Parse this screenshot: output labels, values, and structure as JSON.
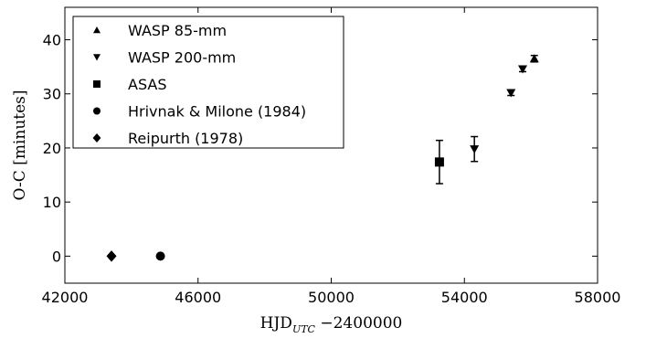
{
  "chart_data": {
    "type": "scatter",
    "xlabel_main": "HJD",
    "xlabel_sub": "UTC",
    "xlabel_rest": " −2400000",
    "ylabel": "O-C [minutes]",
    "xlim": [
      42000,
      58000
    ],
    "ylim": [
      -5,
      46
    ],
    "xticks": [
      42000,
      46000,
      50000,
      54000,
      58000
    ],
    "yticks": [
      0,
      10,
      20,
      30,
      40
    ],
    "grid": false,
    "legend_position": "top-left",
    "series": [
      {
        "name": "WASP 85-mm",
        "marker": "triangle-up",
        "points": [
          {
            "x": 56100,
            "y": 36.5,
            "err": 0.6
          }
        ]
      },
      {
        "name": "WASP 200-mm",
        "marker": "triangle-down",
        "points": [
          {
            "x": 54300,
            "y": 19.8,
            "err": 2.3
          },
          {
            "x": 55400,
            "y": 30.2,
            "err": 0.5
          },
          {
            "x": 55750,
            "y": 34.6,
            "err": 0.5
          }
        ]
      },
      {
        "name": "ASAS",
        "marker": "square",
        "points": [
          {
            "x": 53250,
            "y": 17.4,
            "err": 4.0
          }
        ]
      },
      {
        "name": "Hrivnak & Milone (1984)",
        "marker": "circle",
        "points": [
          {
            "x": 44870,
            "y": 0.0,
            "err": 0
          }
        ]
      },
      {
        "name": "Reipurth (1978)",
        "marker": "diamond",
        "points": [
          {
            "x": 43400,
            "y": 0.0,
            "err": 0
          }
        ]
      }
    ]
  }
}
